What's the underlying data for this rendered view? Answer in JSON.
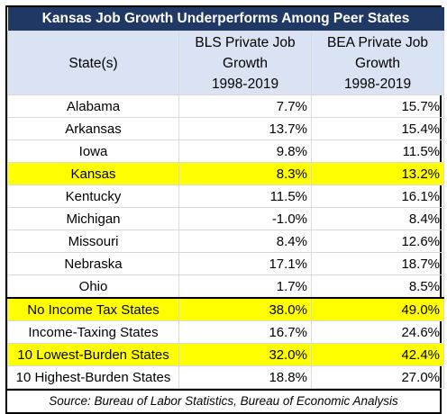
{
  "chart_data": {
    "type": "table",
    "title": "Kansas Job Growth Underperforms Among Peer States",
    "columns": [
      "State(s)",
      "BLS Private Job Growth 1998-2019",
      "BEA Private Job Growth 1998-2019"
    ],
    "rows": [
      {
        "label": "Alabama",
        "bls": "7.7%",
        "bea": "15.7%",
        "highlight": false
      },
      {
        "label": "Arkansas",
        "bls": "13.7%",
        "bea": "15.4%",
        "highlight": false
      },
      {
        "label": "Iowa",
        "bls": "9.8%",
        "bea": "11.5%",
        "highlight": false
      },
      {
        "label": "Kansas",
        "bls": "8.3%",
        "bea": "13.2%",
        "highlight": true
      },
      {
        "label": "Kentucky",
        "bls": "11.5%",
        "bea": "16.1%",
        "highlight": false
      },
      {
        "label": "Michigan",
        "bls": "-1.0%",
        "bea": "8.4%",
        "highlight": false
      },
      {
        "label": "Missouri",
        "bls": "8.4%",
        "bea": "12.6%",
        "highlight": false
      },
      {
        "label": "Nebraska",
        "bls": "17.1%",
        "bea": "18.7%",
        "highlight": false
      },
      {
        "label": "Ohio",
        "bls": "1.7%",
        "bea": "8.5%",
        "highlight": false
      },
      {
        "label": "No Income Tax States",
        "bls": "38.0%",
        "bea": "49.0%",
        "highlight": true
      },
      {
        "label": "Income-Taxing States",
        "bls": "16.7%",
        "bea": "24.6%",
        "highlight": false
      },
      {
        "label": "10 Lowest-Burden States",
        "bls": "32.0%",
        "bea": "42.4%",
        "highlight": true
      },
      {
        "label": "10 Highest-Burden States",
        "bls": "18.8%",
        "bea": "27.0%",
        "highlight": false
      }
    ],
    "source": "Source: Bureau of Labor Statistics, Bureau of Economic Analysis",
    "colors": {
      "title_bg": "#1f3864",
      "header_bg": "#dae3f3",
      "highlight": "#ffff00"
    }
  },
  "header": {
    "col1": "State(s)",
    "col2_line1": "BLS Private Job",
    "col2_line2": "Growth",
    "col2_line3": "1998-2019",
    "col3_line1": "BEA Private Job",
    "col3_line2": "Growth",
    "col3_line3": "1998-2019"
  }
}
